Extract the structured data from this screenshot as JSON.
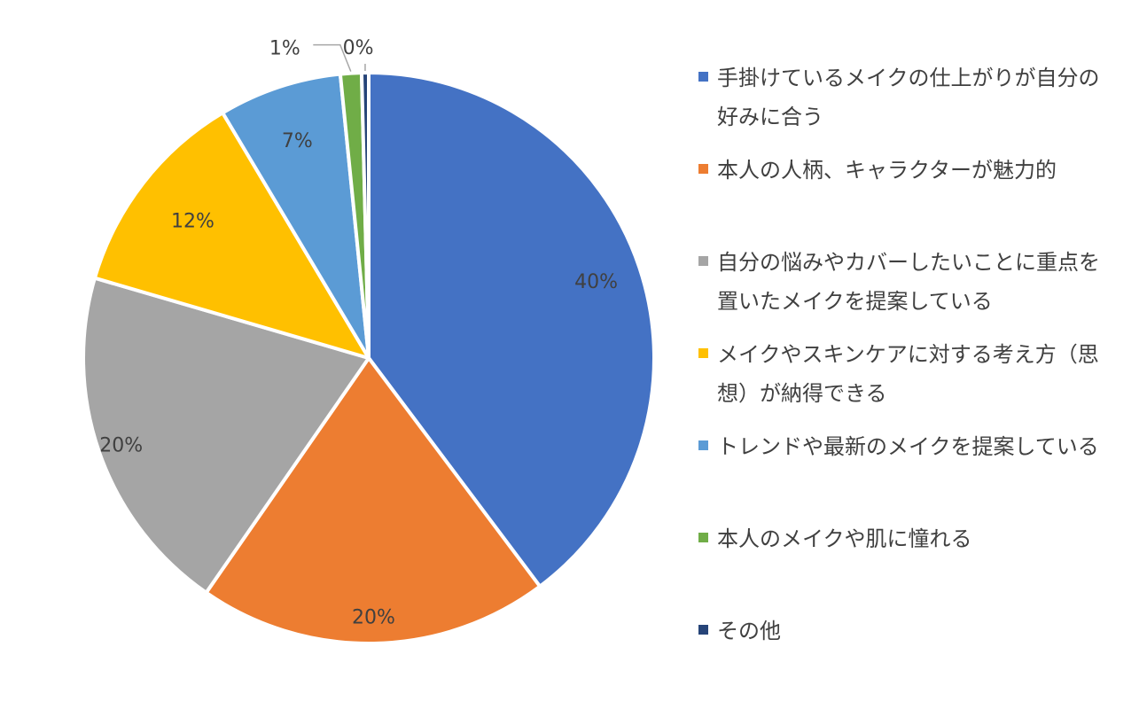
{
  "chart_data": {
    "type": "pie",
    "title": "",
    "start_angle_deg": 0,
    "direction": "clockwise",
    "slices": [
      {
        "label": "手掛けているメイクの仕上がりが自分の好みに合う",
        "value": 40,
        "display": "40%",
        "color": "#4472C4"
      },
      {
        "label": "本人の人柄、キャラクターが魅力的",
        "value": 20,
        "display": "20%",
        "color": "#ED7D31"
      },
      {
        "label": "自分の悩みやカバーしたいことに重点を置いたメイクを提案している",
        "value": 20,
        "display": "20%",
        "color": "#A5A5A5"
      },
      {
        "label": "メイクやスキンケアに対する考え方（思想）が納得できる",
        "value": 12,
        "display": "12%",
        "color": "#FFC000"
      },
      {
        "label": "トレンドや最新のメイクを提案している",
        "value": 7,
        "display": "7%",
        "color": "#5B9BD5"
      },
      {
        "label": "本人のメイクや肌に憧れる",
        "value": 1.2,
        "display": "1%",
        "color": "#70AD47"
      },
      {
        "label": "その他",
        "value": 0.4,
        "display": "0%",
        "color": "#264478"
      }
    ],
    "legend_position": "right"
  }
}
